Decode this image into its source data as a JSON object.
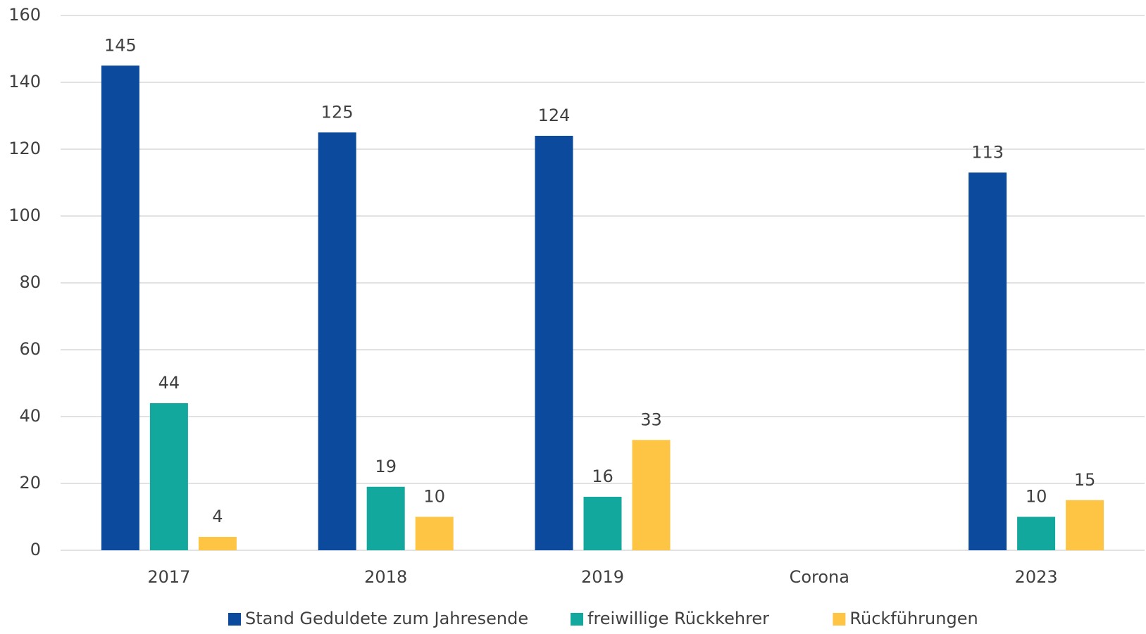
{
  "chart_data": {
    "type": "bar",
    "categories": [
      "2017",
      "2018",
      "2019",
      "Corona",
      "2023"
    ],
    "series": [
      {
        "name": "Stand Geduldete zum Jahresende",
        "color": "#0b4a9c",
        "values": [
          145,
          125,
          124,
          null,
          113
        ]
      },
      {
        "name": "freiwillige Rückkehrer",
        "color": "#13a89e",
        "values": [
          44,
          19,
          16,
          null,
          10
        ]
      },
      {
        "name": "Rückführungen",
        "color": "#fdc543",
        "values": [
          4,
          10,
          33,
          null,
          15
        ]
      }
    ],
    "ylim": [
      0,
      160
    ],
    "yticks": [
      0,
      20,
      40,
      60,
      80,
      100,
      120,
      140,
      160
    ],
    "grid": true,
    "legend": "bottom"
  }
}
